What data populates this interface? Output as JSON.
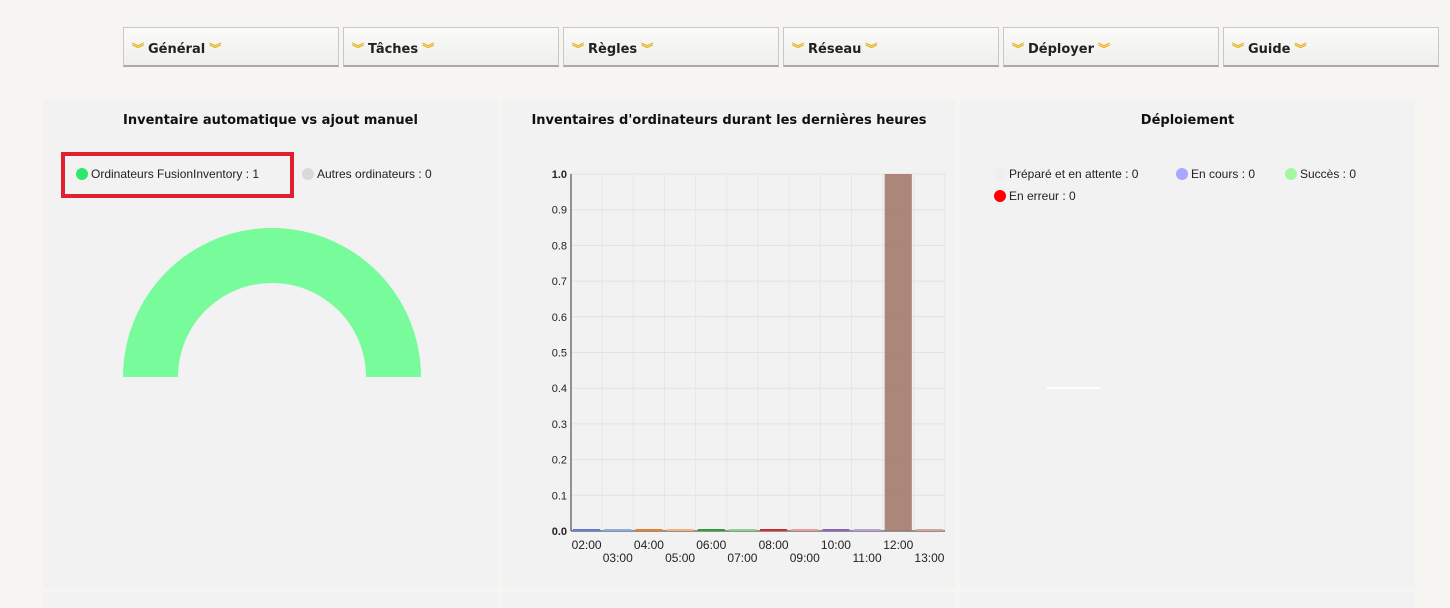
{
  "menu": {
    "items": [
      {
        "label": "Général"
      },
      {
        "label": "Tâches"
      },
      {
        "label": "Règles"
      },
      {
        "label": "Réseau"
      },
      {
        "label": "Déployer"
      },
      {
        "label": "Guide"
      }
    ],
    "chevron_icon": "double-chevron-down-icon",
    "chevron_color": "#e9b21d"
  },
  "panels": {
    "inventory_type": {
      "title": "Inventaire automatique vs ajout manuel",
      "legend": [
        {
          "label": "Ordinateurs FusionInventory : 1",
          "color": "#2ee86a"
        },
        {
          "label": "Autres ordinateurs : 0",
          "color": "#d9d9d9"
        }
      ],
      "gauge": {
        "fusion_count": 1,
        "other_count": 0,
        "fill_color": "#78fb9a"
      }
    },
    "hourly": {
      "title": "Inventaires d'ordinateurs durant les dernières heures"
    },
    "deploy": {
      "title": "Déploiement",
      "legend": [
        {
          "label": "Préparé et en attente : 0",
          "color": "#efefef"
        },
        {
          "label": "En cours : 0",
          "color": "#a8a8ff"
        },
        {
          "label": "Succès : 0",
          "color": "#a3f7a3"
        },
        {
          "label": "En erreur : 0",
          "color": "#ff0000"
        }
      ]
    }
  },
  "chart_data": {
    "type": "bar",
    "title": "Inventaires d'ordinateurs durant les dernières heures",
    "categories": [
      "02:00",
      "03:00",
      "04:00",
      "05:00",
      "06:00",
      "07:00",
      "08:00",
      "09:00",
      "10:00",
      "11:00",
      "12:00",
      "13:00"
    ],
    "values": [
      0,
      0,
      0,
      0,
      0,
      0,
      0,
      0,
      0,
      0,
      1,
      0
    ],
    "colors": [
      "#5c7fd6",
      "#88b0e8",
      "#e8822a",
      "#f7b07a",
      "#2f9e3a",
      "#8fd48a",
      "#d62a2a",
      "#f29a9a",
      "#8a64c2",
      "#b9a3d9",
      "#a47a6e",
      "#d4a59a"
    ],
    "ylim": [
      0,
      1
    ],
    "yticks": [
      "0.0",
      "0.1",
      "0.2",
      "0.3",
      "0.4",
      "0.5",
      "0.6",
      "0.7",
      "0.8",
      "0.9",
      "1.0"
    ],
    "grid": true,
    "xlabel": "",
    "ylabel": ""
  }
}
